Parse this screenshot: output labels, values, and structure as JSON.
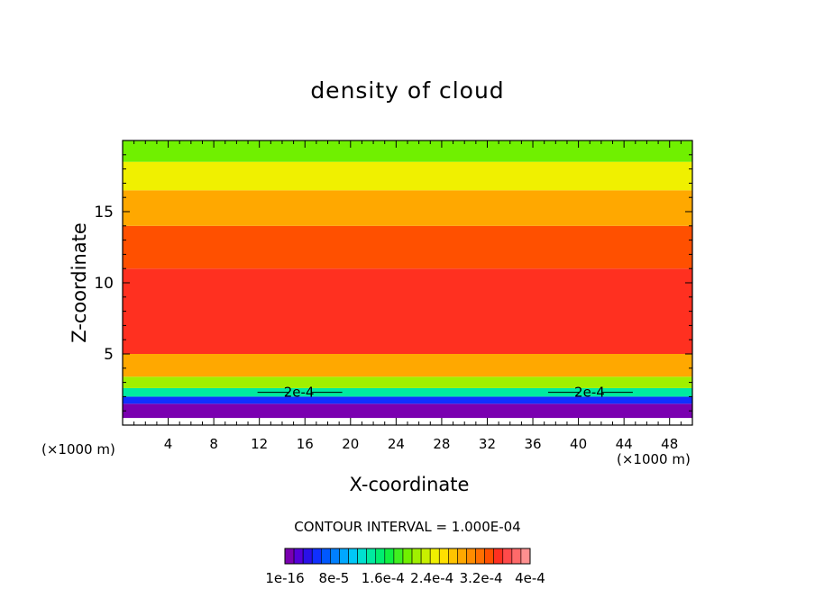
{
  "chart_data": {
    "type": "heatmap",
    "title": "density of cloud",
    "xlabel": "X-coordinate",
    "ylabel": "Z-coordinate",
    "x_unit": "(×1000 m)",
    "y_unit": "(×1000 m)",
    "xlim": [
      0,
      50
    ],
    "ylim": [
      0,
      20
    ],
    "x_ticks": [
      4,
      8,
      12,
      16,
      20,
      24,
      28,
      32,
      36,
      40,
      44,
      48
    ],
    "y_ticks": [
      5,
      10,
      15
    ],
    "contour_interval": "CONTOUR INTERVAL = 1.000E-04",
    "contour_lines": [
      {
        "label": "2e-4",
        "x": [
          15,
          40.5
        ],
        "z": [
          2.3,
          2.3
        ]
      }
    ],
    "colorbar": {
      "labels": [
        "1e-16",
        "8e-5",
        "1.6e-4",
        "2.4e-4",
        "3.2e-4",
        "4e-4"
      ],
      "colors": [
        "#7a00b0",
        "#5500d8",
        "#2a10e8",
        "#1030ff",
        "#0058ff",
        "#0080ff",
        "#00a8ff",
        "#00c8f8",
        "#00e0d0",
        "#00eaa0",
        "#00ee70",
        "#10f040",
        "#40f020",
        "#70f000",
        "#a0f000",
        "#c8f000",
        "#f0f000",
        "#ffe000",
        "#ffc400",
        "#ffa800",
        "#ff8c00",
        "#ff7000",
        "#ff5000",
        "#ff3020",
        "#ff4a4a",
        "#ff6a6a",
        "#ff9090"
      ]
    },
    "field_bands": [
      {
        "z_range": [
          0.5,
          1.5
        ],
        "level": 0.0
      },
      {
        "z_range": [
          1.5,
          2.0
        ],
        "level": 0.1
      },
      {
        "z_range": [
          2.0,
          2.6
        ],
        "level": 0.35
      },
      {
        "z_range": [
          2.6,
          3.4
        ],
        "level": 0.55
      },
      {
        "z_range": [
          3.4,
          5.0
        ],
        "level": 0.72
      },
      {
        "z_range": [
          5.0,
          11.0
        ],
        "level": 0.9
      },
      {
        "z_range": [
          11.0,
          14.0
        ],
        "level": 0.84
      },
      {
        "z_range": [
          14.0,
          16.5
        ],
        "level": 0.74
      },
      {
        "z_range": [
          16.5,
          18.5
        ],
        "level": 0.62
      },
      {
        "z_range": [
          18.5,
          20.0
        ],
        "level": 0.5
      }
    ]
  }
}
